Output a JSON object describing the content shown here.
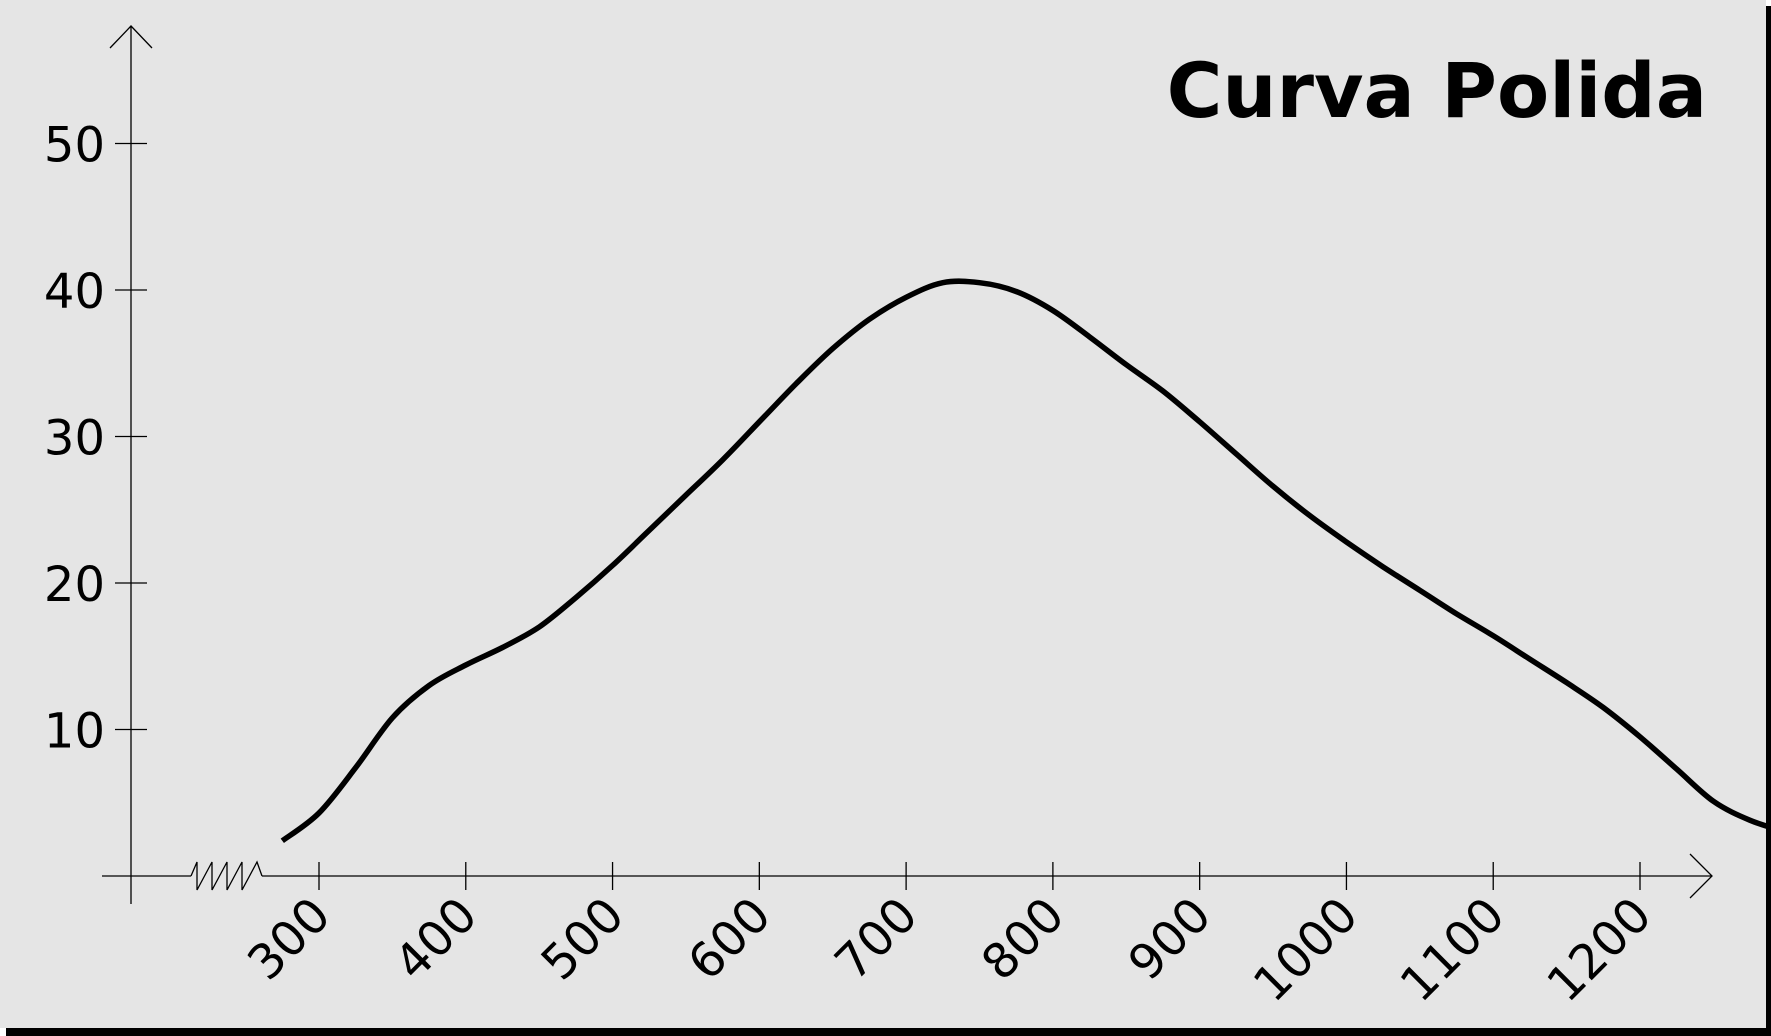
{
  "chart_data": {
    "type": "line",
    "title": "Curva Polida",
    "xlabel": "",
    "ylabel": "",
    "xlim": [
      150,
      1240
    ],
    "ylim": [
      0,
      55
    ],
    "grid": false,
    "x_ticks": [
      300,
      400,
      500,
      600,
      700,
      800,
      900,
      1000,
      1100,
      1200
    ],
    "x_tick_labels": [
      "300",
      "400",
      "500",
      "600",
      "700",
      "800",
      "900",
      "1000",
      "1100",
      "1200"
    ],
    "y_ticks": [
      10,
      20,
      30,
      40,
      50
    ],
    "y_tick_labels": [
      "10",
      "20",
      "30",
      "40",
      "50"
    ],
    "x_axis_break": true,
    "series": [
      {
        "color": "#000000",
        "points": [
          [
            275,
            2.4
          ],
          [
            300,
            4.3
          ],
          [
            325,
            7.4
          ],
          [
            350,
            10.8
          ],
          [
            375,
            13.0
          ],
          [
            400,
            14.4
          ],
          [
            425,
            15.6
          ],
          [
            450,
            17.0
          ],
          [
            475,
            19.0
          ],
          [
            500,
            21.2
          ],
          [
            525,
            23.6
          ],
          [
            550,
            26.0
          ],
          [
            575,
            28.4
          ],
          [
            600,
            31.0
          ],
          [
            625,
            33.6
          ],
          [
            650,
            36.0
          ],
          [
            675,
            38.0
          ],
          [
            700,
            39.5
          ],
          [
            725,
            40.5
          ],
          [
            750,
            40.5
          ],
          [
            775,
            39.9
          ],
          [
            800,
            38.6
          ],
          [
            825,
            36.8
          ],
          [
            850,
            34.9
          ],
          [
            875,
            33.1
          ],
          [
            900,
            31.0
          ],
          [
            925,
            28.8
          ],
          [
            950,
            26.6
          ],
          [
            975,
            24.6
          ],
          [
            1000,
            22.8
          ],
          [
            1025,
            21.1
          ],
          [
            1050,
            19.5
          ],
          [
            1075,
            17.9
          ],
          [
            1100,
            16.4
          ],
          [
            1125,
            14.8
          ],
          [
            1150,
            13.2
          ],
          [
            1175,
            11.5
          ],
          [
            1200,
            9.5
          ],
          [
            1225,
            7.3
          ],
          [
            1250,
            5.1
          ],
          [
            1275,
            3.8
          ],
          [
            1300,
            3.0
          ]
        ]
      }
    ]
  },
  "colors": {
    "background": "#e5e5e5",
    "frame_shadow": "#000000",
    "line": "#000000",
    "axis": "#000000"
  }
}
